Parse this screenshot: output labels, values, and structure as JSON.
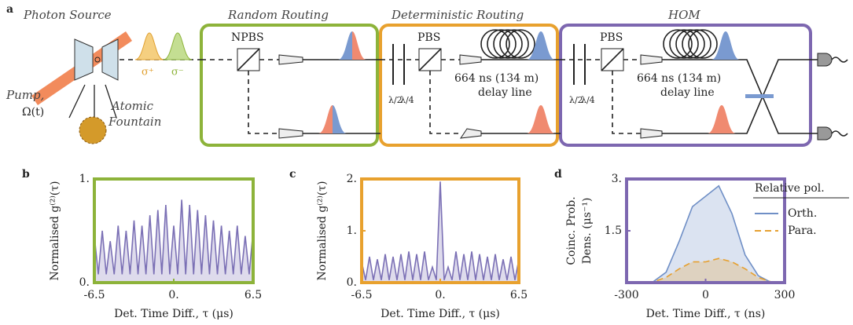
{
  "diagram": {
    "panel_label": "a",
    "sections": [
      "Photon Source",
      "Random Routing",
      "Deterministic Routing",
      "HOM"
    ],
    "source": {
      "pump": "Pump,",
      "rabi": "Ω(t)",
      "fountain": [
        "Atomic",
        "Fountain"
      ],
      "polarisations": [
        "σ⁺",
        "σ⁻"
      ]
    },
    "components": [
      "NPBS",
      "PBS",
      "PBS"
    ],
    "waveplates": [
      "λ/2",
      "λ/4"
    ],
    "delay": [
      "664 ns (134 m)",
      "delay line"
    ]
  },
  "chart_data": [
    {
      "type": "line",
      "panel_label": "b",
      "ylabel": "Normalised g⁽²⁾(τ)",
      "xlabel": "Det. Time Diff., τ (μs)",
      "frame_color": "#8db33a",
      "area": true,
      "color": "#7b70b5",
      "xlim": [
        -6.5,
        6.5
      ],
      "xticks": [
        -6.5,
        {
          "value": 0,
          "label": "0."
        },
        6.5
      ],
      "ylim": [
        0,
        1
      ],
      "yticks": [
        {
          "value": 0,
          "label": "0."
        },
        {
          "value": 1,
          "label": "1."
        }
      ],
      "x": [
        -6.5,
        -6.175,
        -5.85,
        -5.525,
        -5.2,
        -4.875,
        -4.55,
        -4.225,
        -3.9,
        -3.575,
        -3.25,
        -2.925,
        -2.6,
        -2.275,
        -1.95,
        -1.625,
        -1.3,
        -0.975,
        -0.65,
        -0.325,
        0,
        0.325,
        0.65,
        0.975,
        1.3,
        1.625,
        1.95,
        2.275,
        2.6,
        2.925,
        3.25,
        3.575,
        3.9,
        4.225,
        4.55,
        4.875,
        5.2,
        5.525,
        5.85,
        6.175,
        6.5
      ],
      "values": [
        0.45,
        0.08,
        0.5,
        0.08,
        0.4,
        0.08,
        0.55,
        0.08,
        0.5,
        0.08,
        0.6,
        0.08,
        0.55,
        0.08,
        0.65,
        0.08,
        0.7,
        0.08,
        0.75,
        0.08,
        0.55,
        0.08,
        0.8,
        0.08,
        0.75,
        0.08,
        0.7,
        0.08,
        0.65,
        0.08,
        0.6,
        0.08,
        0.55,
        0.08,
        0.5,
        0.08,
        0.55,
        0.08,
        0.45,
        0.08,
        0.5
      ]
    },
    {
      "type": "line",
      "panel_label": "c",
      "ylabel": "Normalised g⁽²⁾(τ)",
      "xlabel": "Det. Time Diff., τ (μs)",
      "frame_color": "#e8a12e",
      "area": true,
      "color": "#7b70b5",
      "xlim": [
        -6.5,
        6.5
      ],
      "xticks": [
        -6.5,
        {
          "value": 0,
          "label": "0."
        },
        6.5
      ],
      "ylim": [
        0,
        2
      ],
      "yticks": [
        {
          "value": 0,
          "label": "0."
        },
        {
          "value": 1,
          "label": "1."
        },
        {
          "value": 2,
          "label": "2."
        }
      ],
      "x": [
        -6.5,
        -6.175,
        -5.85,
        -5.525,
        -5.2,
        -4.875,
        -4.55,
        -4.225,
        -3.9,
        -3.575,
        -3.25,
        -2.925,
        -2.6,
        -2.275,
        -1.95,
        -1.625,
        -1.3,
        -0.975,
        -0.65,
        -0.325,
        0,
        0.325,
        0.65,
        0.975,
        1.3,
        1.625,
        1.95,
        2.275,
        2.6,
        2.925,
        3.25,
        3.575,
        3.9,
        4.225,
        4.55,
        4.875,
        5.2,
        5.525,
        5.85,
        6.175,
        6.5
      ],
      "values": [
        0.4,
        0.05,
        0.5,
        0.05,
        0.45,
        0.05,
        0.55,
        0.05,
        0.5,
        0.05,
        0.55,
        0.05,
        0.6,
        0.05,
        0.55,
        0.05,
        0.6,
        0.05,
        0.3,
        0.05,
        1.95,
        0.05,
        0.3,
        0.05,
        0.6,
        0.05,
        0.55,
        0.05,
        0.6,
        0.05,
        0.55,
        0.05,
        0.5,
        0.05,
        0.55,
        0.05,
        0.45,
        0.05,
        0.5,
        0.05,
        0.45
      ]
    },
    {
      "type": "line",
      "panel_label": "d",
      "ylabel": [
        "Coinc. Prob.",
        "Dens. (μs⁻¹)"
      ],
      "xlabel": "Det. Time Diff., τ (ns)",
      "frame_color": "#7d67b0",
      "area": true,
      "legend": "upper right",
      "legend_title": "Relative pol.",
      "xlim": [
        -300,
        300
      ],
      "xticks": [
        -300,
        0,
        300
      ],
      "ylim": [
        0,
        3
      ],
      "yticks": [
        1.5,
        {
          "value": 3,
          "label": "3."
        }
      ],
      "x": [
        -300,
        -250,
        -200,
        -150,
        -100,
        -50,
        0,
        50,
        100,
        150,
        200,
        250,
        300
      ],
      "series": [
        {
          "name": "Orth.",
          "color": "#6f8fc6",
          "linestyle": "solid",
          "values": [
            0,
            0,
            0.02,
            0.3,
            1.2,
            2.2,
            2.5,
            2.8,
            2.0,
            0.8,
            0.2,
            0,
            0
          ]
        },
        {
          "name": "Para.",
          "color": "#e6a030",
          "linestyle": "dashed",
          "values": [
            0,
            0,
            0.02,
            0.15,
            0.4,
            0.6,
            0.6,
            0.7,
            0.6,
            0.4,
            0.15,
            0.02,
            0
          ]
        }
      ]
    }
  ]
}
